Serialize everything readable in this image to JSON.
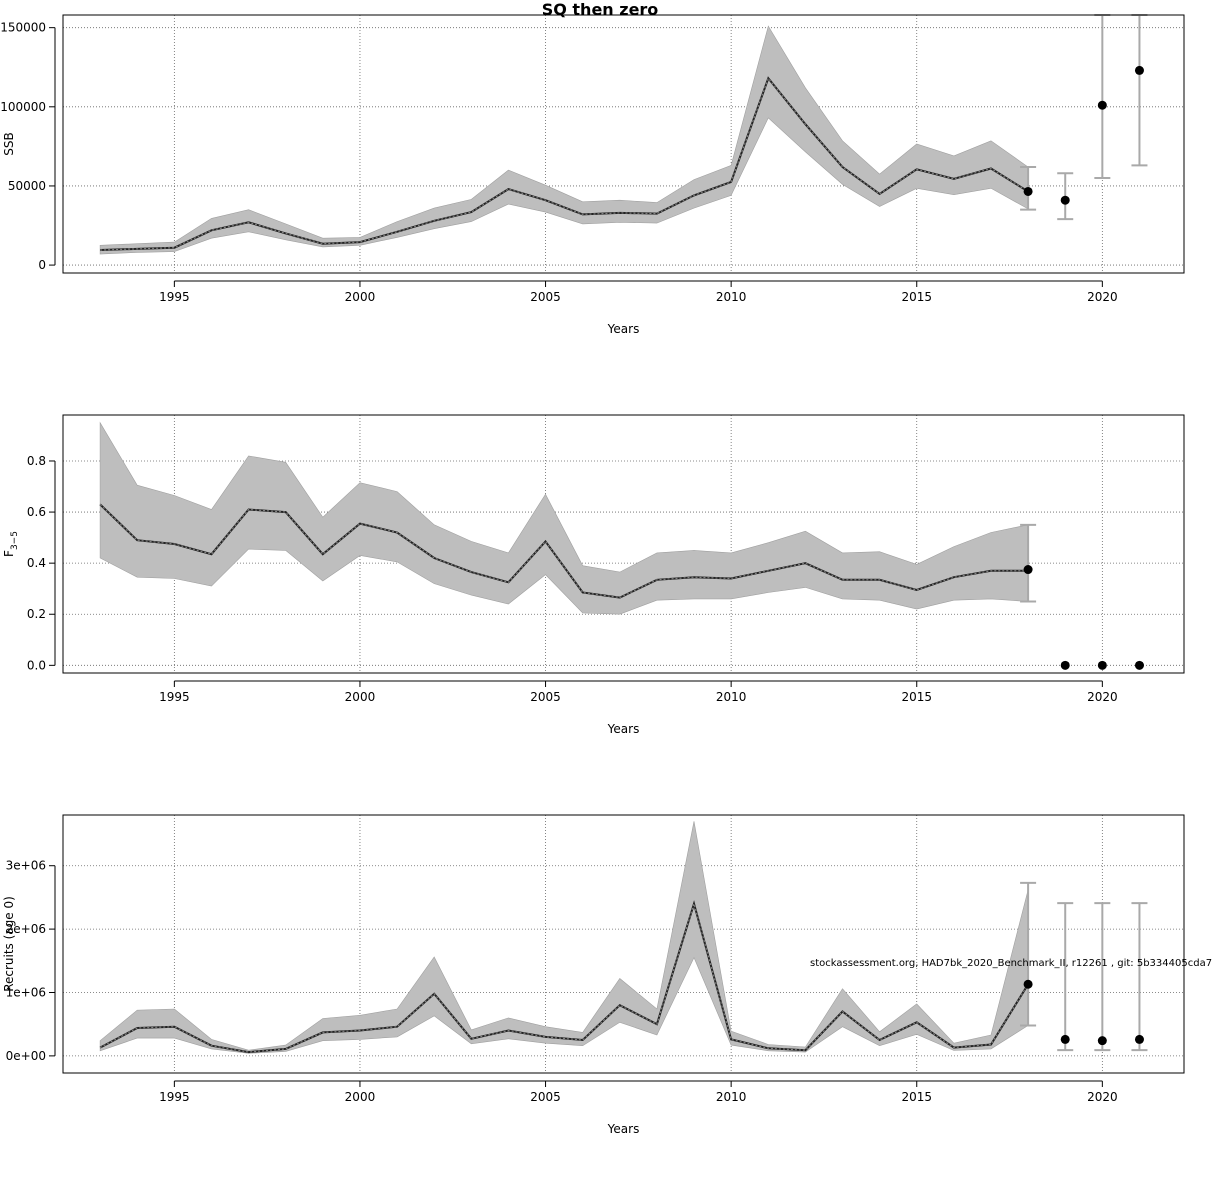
{
  "title": "SQ then zero",
  "watermark": "stockassessment.org, HAD7bk_2020_Benchmark_II, r12261 , git: 5b334405cda7",
  "colors": {
    "band": "#bebebe",
    "line": "#222222",
    "point": "#000000",
    "errorbar": "#a9a9a9",
    "grid": "#666666",
    "axis": "#000000"
  },
  "chart_data": [
    {
      "type": "line",
      "ylabel": "SSB",
      "xlabel": "Years",
      "grid": true,
      "xlim": [
        1992,
        2022.2
      ],
      "ylim": [
        -5000,
        158000
      ],
      "x_ticks": [
        "1995",
        "2000",
        "2005",
        "2010",
        "2015",
        "2020"
      ],
      "y_ticks": [
        "0",
        "50000",
        "100000",
        "150000"
      ],
      "y_tick_values": [
        0,
        50000,
        100000,
        150000
      ],
      "years": [
        1993,
        1994,
        1995,
        1996,
        1997,
        1998,
        1999,
        2000,
        2001,
        2002,
        2003,
        2004,
        2005,
        2006,
        2007,
        2008,
        2009,
        2010,
        2011,
        2012,
        2013,
        2014,
        2015,
        2016,
        2017,
        2018
      ],
      "estimate": [
        9500,
        10200,
        11000,
        22000,
        27000,
        20000,
        13500,
        14500,
        21000,
        28000,
        33500,
        48000,
        41000,
        32000,
        33000,
        32500,
        44000,
        52500,
        118000,
        89000,
        62000,
        45000,
        60500,
        54500,
        61000,
        46500
      ],
      "lower": [
        7000,
        8000,
        8500,
        17000,
        21000,
        16000,
        11500,
        12500,
        17500,
        23000,
        27500,
        38500,
        33500,
        26000,
        27000,
        26500,
        36000,
        44000,
        93000,
        71500,
        51000,
        37000,
        48500,
        44500,
        48500,
        35500
      ],
      "upper": [
        12500,
        13500,
        14500,
        29500,
        35000,
        26000,
        17000,
        17500,
        27500,
        36000,
        41500,
        60000,
        50500,
        40000,
        41000,
        39500,
        54000,
        63000,
        151000,
        112000,
        78500,
        57500,
        76500,
        69000,
        78500,
        62000
      ],
      "forecast": [
        {
          "year": 2018,
          "value": 46500,
          "lower": 35000,
          "upper": 62000
        },
        {
          "year": 2019,
          "value": 41000,
          "lower": 29000,
          "upper": 58000
        },
        {
          "year": 2020,
          "value": 101000,
          "lower": 55000,
          "upper": 158000
        },
        {
          "year": 2021,
          "value": 123000,
          "lower": 63000,
          "upper": 158000
        }
      ]
    },
    {
      "type": "line",
      "ylabel": "F",
      "ylabel_sub": "3−5",
      "xlabel": "Years",
      "grid": true,
      "xlim": [
        1992,
        2022.2
      ],
      "ylim": [
        -0.03,
        0.98
      ],
      "x_ticks": [
        "1995",
        "2000",
        "2005",
        "2010",
        "2015",
        "2020"
      ],
      "y_ticks": [
        "0.0",
        "0.2",
        "0.4",
        "0.6",
        "0.8"
      ],
      "y_tick_values": [
        0,
        0.2,
        0.4,
        0.6,
        0.8
      ],
      "years": [
        1993,
        1994,
        1995,
        1996,
        1997,
        1998,
        1999,
        2000,
        2001,
        2002,
        2003,
        2004,
        2005,
        2006,
        2007,
        2008,
        2009,
        2010,
        2011,
        2012,
        2013,
        2014,
        2015,
        2016,
        2017,
        2018
      ],
      "estimate": [
        0.63,
        0.49,
        0.475,
        0.435,
        0.61,
        0.6,
        0.435,
        0.555,
        0.52,
        0.42,
        0.365,
        0.325,
        0.485,
        0.285,
        0.265,
        0.335,
        0.345,
        0.34,
        0.37,
        0.4,
        0.335,
        0.335,
        0.295,
        0.345,
        0.37,
        0.37
      ],
      "lower": [
        0.42,
        0.345,
        0.34,
        0.31,
        0.455,
        0.45,
        0.33,
        0.43,
        0.405,
        0.32,
        0.275,
        0.24,
        0.355,
        0.205,
        0.2,
        0.255,
        0.26,
        0.26,
        0.285,
        0.305,
        0.26,
        0.255,
        0.22,
        0.255,
        0.26,
        0.25
      ],
      "upper": [
        0.95,
        0.705,
        0.665,
        0.61,
        0.82,
        0.795,
        0.58,
        0.715,
        0.68,
        0.55,
        0.485,
        0.44,
        0.67,
        0.39,
        0.365,
        0.44,
        0.45,
        0.44,
        0.48,
        0.525,
        0.44,
        0.445,
        0.395,
        0.465,
        0.52,
        0.55
      ],
      "forecast": [
        {
          "year": 2018,
          "value": 0.375,
          "lower": 0.25,
          "upper": 0.55
        },
        {
          "year": 2019,
          "value": 0.0
        },
        {
          "year": 2020,
          "value": 0.0
        },
        {
          "year": 2021,
          "value": 0.0
        }
      ]
    },
    {
      "type": "line",
      "ylabel": "Recruits (age 0)",
      "xlabel": "Years",
      "grid": true,
      "xlim": [
        1992,
        2022.2
      ],
      "ylim": [
        -270000,
        3800000
      ],
      "x_ticks": [
        "1995",
        "2000",
        "2005",
        "2010",
        "2015",
        "2020"
      ],
      "y_ticks": [
        "0e+00",
        "1e+06",
        "2e+06",
        "3e+06"
      ],
      "y_tick_values": [
        0,
        1000000,
        2000000,
        3000000
      ],
      "years": [
        1993,
        1994,
        1995,
        1996,
        1997,
        1998,
        1999,
        2000,
        2001,
        2002,
        2003,
        2004,
        2005,
        2006,
        2007,
        2008,
        2009,
        2010,
        2011,
        2012,
        2013,
        2014,
        2015,
        2016,
        2017,
        2018
      ],
      "estimate": [
        130000,
        440000,
        460000,
        160000,
        60000,
        110000,
        370000,
        400000,
        460000,
        980000,
        270000,
        400000,
        300000,
        250000,
        800000,
        500000,
        2400000,
        260000,
        120000,
        90000,
        700000,
        250000,
        530000,
        130000,
        180000,
        1130000
      ],
      "lower": [
        80000,
        280000,
        280000,
        110000,
        40000,
        70000,
        240000,
        260000,
        300000,
        630000,
        190000,
        270000,
        200000,
        160000,
        530000,
        330000,
        1550000,
        170000,
        80000,
        60000,
        460000,
        160000,
        340000,
        85000,
        110000,
        480000
      ],
      "upper": [
        240000,
        720000,
        740000,
        260000,
        90000,
        170000,
        590000,
        640000,
        740000,
        1560000,
        410000,
        600000,
        460000,
        370000,
        1220000,
        740000,
        3700000,
        390000,
        180000,
        140000,
        1060000,
        380000,
        820000,
        200000,
        330000,
        2620000
      ],
      "forecast": [
        {
          "year": 2018,
          "value": 1130000,
          "lower": 480000,
          "upper": 2730000
        },
        {
          "year": 2019,
          "value": 260000,
          "lower": 90000,
          "upper": 2410000
        },
        {
          "year": 2020,
          "value": 240000,
          "lower": 90000,
          "upper": 2410000
        },
        {
          "year": 2021,
          "value": 260000,
          "lower": 90000,
          "upper": 2410000
        }
      ]
    }
  ]
}
